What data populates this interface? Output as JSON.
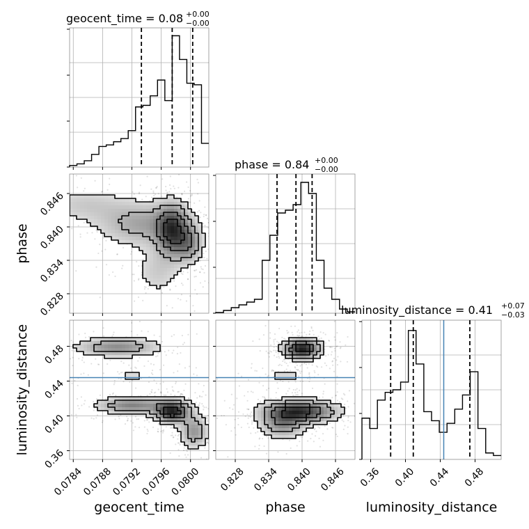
{
  "chart_data": {
    "type": "corner",
    "parameters": [
      "geocent_time",
      "phase",
      "luminosity_distance"
    ],
    "truth": {
      "luminosity_distance": 0.444
    },
    "truth_color": "#4682b4",
    "grid": true,
    "marginals": [
      {
        "parameter": "geocent_time",
        "title_main": "geocent_time = 0.08",
        "title_sup": "+0.00",
        "title_sub": "−0.00",
        "range": [
          0.07835,
          0.08025
        ],
        "quantiles": [
          0.07933,
          0.07975,
          0.08003
        ],
        "hist_values": [
          0.01,
          0.02,
          0.04,
          0.08,
          0.13,
          0.14,
          0.16,
          0.18,
          0.23,
          0.38,
          0.39,
          0.45,
          0.55,
          0.42,
          0.83,
          0.68,
          0.53,
          0.52,
          0.15
        ],
        "ylim": [
          0,
          0.88
        ],
        "ticks": [
          0.0784,
          0.0788,
          0.0792,
          0.0796,
          0.08
        ],
        "tick_labels": [
          "0.0784",
          "0.0788",
          "0.0792",
          "0.0796",
          "0.0800"
        ]
      },
      {
        "parameter": "phase",
        "title_main": "phase = 0.84",
        "title_sup": "+0.00",
        "title_sub": "−0.00",
        "range": [
          0.8245,
          0.8495
        ],
        "quantiles": [
          0.8355,
          0.8389,
          0.8418
        ],
        "hist_values": [
          0.005,
          0.02,
          0.04,
          0.06,
          0.08,
          0.1,
          0.38,
          0.56,
          0.72,
          0.74,
          0.78,
          0.94,
          0.86,
          0.38,
          0.18,
          0.1,
          0.03,
          0.01
        ],
        "ylim": [
          0,
          1.0
        ],
        "ticks": [
          0.828,
          0.834,
          0.84,
          0.846
        ],
        "tick_labels": [
          "0.828",
          "0.834",
          "0.840",
          "0.846"
        ]
      },
      {
        "parameter": "luminosity_distance",
        "title_main": "luminosity_distance = 0.41",
        "title_sup": "+0.07",
        "title_sub": "−0.03",
        "range": [
          0.35,
          0.51
        ],
        "quantiles": [
          0.383,
          0.409,
          0.474
        ],
        "hist_values": [
          0.32,
          0.24,
          0.46,
          0.52,
          0.54,
          0.6,
          1.0,
          0.74,
          0.37,
          0.3,
          0.21,
          0.28,
          0.39,
          0.5,
          0.68,
          0.24,
          0.05,
          0.03
        ],
        "ylim": [
          0,
          1.08
        ],
        "ticks": [
          0.36,
          0.4,
          0.44,
          0.48
        ],
        "tick_labels": [
          "0.36",
          "0.40",
          "0.44",
          "0.48"
        ]
      }
    ],
    "axis_labels": {
      "x": [
        "geocent_time",
        "phase",
        "luminosity_distance"
      ],
      "y": [
        "phase",
        "luminosity_distance"
      ]
    },
    "pairs": [
      {
        "x": "geocent_time",
        "y": "phase",
        "density_peaks": [
          {
            "x": 0.07975,
            "y": 0.8393,
            "sx": 0.00014,
            "sy": 0.003,
            "w": 1.0
          },
          {
            "x": 0.07998,
            "y": 0.837,
            "sx": 0.00012,
            "sy": 0.0022,
            "w": 0.6
          },
          {
            "x": 0.07935,
            "y": 0.8405,
            "sx": 0.0004,
            "sy": 0.0025,
            "w": 0.5
          },
          {
            "x": 0.07855,
            "y": 0.844,
            "sx": 0.0004,
            "sy": 0.002,
            "w": 0.25
          },
          {
            "x": 0.07955,
            "y": 0.832,
            "sx": 0.0002,
            "sy": 0.003,
            "w": 0.25
          }
        ]
      },
      {
        "x": "geocent_time",
        "y": "luminosity_distance",
        "density_peaks": [
          {
            "x": 0.07975,
            "y": 0.405,
            "sx": 0.00015,
            "sy": 0.008,
            "w": 1.0
          },
          {
            "x": 0.0792,
            "y": 0.412,
            "sx": 0.0003,
            "sy": 0.006,
            "w": 0.55
          },
          {
            "x": 0.08005,
            "y": 0.382,
            "sx": 0.00012,
            "sy": 0.012,
            "w": 0.45
          },
          {
            "x": 0.079,
            "y": 0.479,
            "sx": 0.00035,
            "sy": 0.007,
            "w": 0.5
          },
          {
            "x": 0.0792,
            "y": 0.446,
            "sx": 0.0003,
            "sy": 0.004,
            "w": 0.15
          }
        ]
      },
      {
        "x": "phase",
        "y": "luminosity_distance",
        "density_peaks": [
          {
            "x": 0.84,
            "y": 0.477,
            "sx": 0.002,
            "sy": 0.007,
            "w": 1.0
          },
          {
            "x": 0.8395,
            "y": 0.405,
            "sx": 0.004,
            "sy": 0.008,
            "w": 0.9
          },
          {
            "x": 0.8365,
            "y": 0.39,
            "sx": 0.0025,
            "sy": 0.01,
            "w": 0.45
          },
          {
            "x": 0.837,
            "y": 0.446,
            "sx": 0.003,
            "sy": 0.005,
            "w": 0.15
          }
        ]
      }
    ]
  }
}
